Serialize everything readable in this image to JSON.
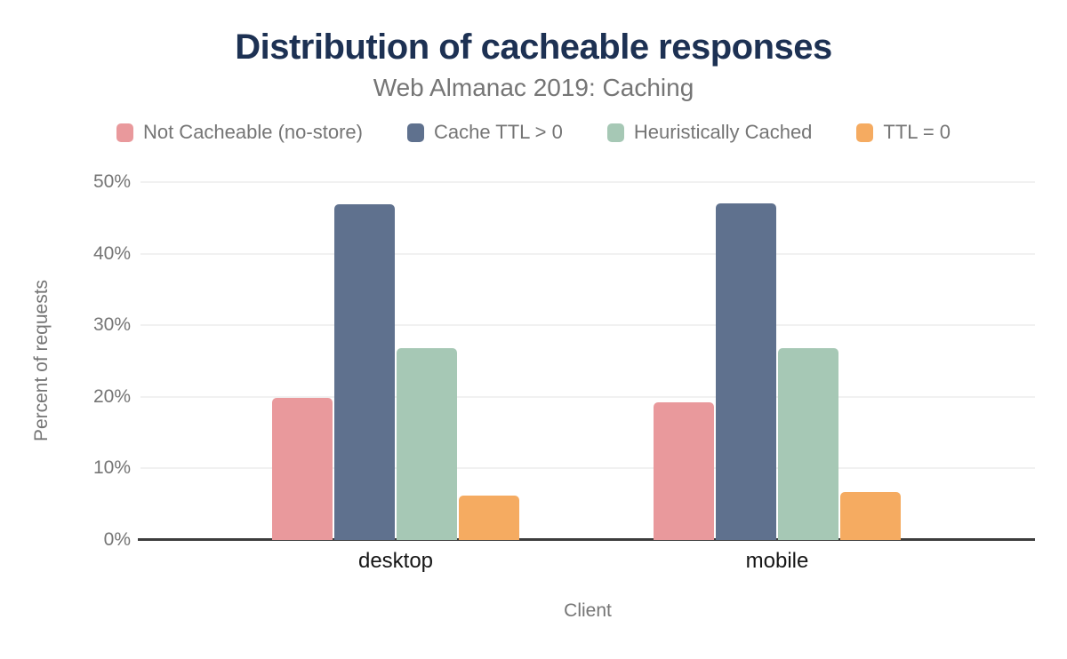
{
  "chart_data": {
    "type": "bar",
    "title": "Distribution of cacheable responses",
    "subtitle": "Web Almanac 2019: Caching",
    "categories": [
      "desktop",
      "mobile"
    ],
    "series": [
      {
        "name": "Not Cacheable (no-store)",
        "color": "#e9999c",
        "values": [
          19.8,
          19.2
        ]
      },
      {
        "name": "Cache TTL > 0",
        "color": "#5f718e",
        "values": [
          46.9,
          47.0
        ]
      },
      {
        "name": "Heuristically Cached",
        "color": "#a6c8b5",
        "values": [
          26.8,
          26.8
        ]
      },
      {
        "name": "TTL = 0",
        "color": "#f5ab61",
        "values": [
          6.2,
          6.7
        ]
      }
    ],
    "xlabel": "Client",
    "ylabel": "Percent of requests",
    "ylim": [
      0,
      50
    ],
    "yticks": [
      {
        "value": 0,
        "label": "0%"
      },
      {
        "value": 10,
        "label": "10%"
      },
      {
        "value": 20,
        "label": "20%"
      },
      {
        "value": 30,
        "label": "30%"
      },
      {
        "value": 40,
        "label": "40%"
      },
      {
        "value": 50,
        "label": "50%"
      }
    ],
    "grid": true,
    "legend_position": "top"
  },
  "colors": {
    "title_text": "#1d3153",
    "muted_text": "#757575",
    "category_text": "#161616",
    "axis_line": "#3d3d3d",
    "gridline": "#f1f1f1",
    "background": "#ffffff"
  }
}
